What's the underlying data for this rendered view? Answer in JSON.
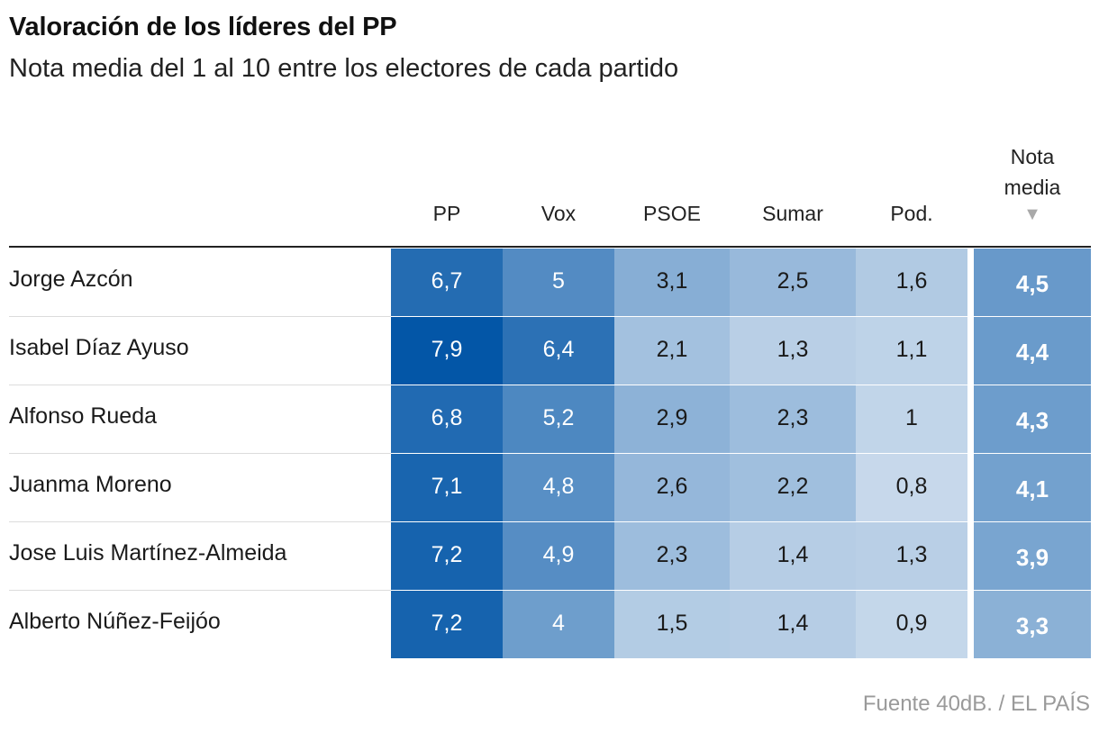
{
  "title": "Valoración de los líderes del PP",
  "subtitle": "Nota media del 1 al 10 entre los electores de cada partido",
  "source": "Fuente 40dB. / EL PAÍS",
  "colors": {
    "scale_low": "#cfdeee",
    "scale_high": "#0054a6",
    "text_dark": "#1a1a1a",
    "text_light": "#ffffff",
    "sort_arrow": "#a9a9a9"
  },
  "chart_data": {
    "type": "heatmap",
    "title": "Valoración de los líderes del PP",
    "subtitle": "Nota media del 1 al 10 entre los electores de cada partido",
    "columns": [
      "PP",
      "Vox",
      "PSOE",
      "Sumar",
      "Pod."
    ],
    "avg_header": [
      "Nota",
      "media"
    ],
    "sort_indicator": "▼",
    "rows": [
      {
        "name": "Jorge Azcón",
        "values": [
          "6,7",
          "5",
          "3,1",
          "2,5",
          "1,6"
        ],
        "avg": "4,5"
      },
      {
        "name": "Isabel Díaz Ayuso",
        "values": [
          "7,9",
          "6,4",
          "2,1",
          "1,3",
          "1,1"
        ],
        "avg": "4,4"
      },
      {
        "name": "Alfonso Rueda",
        "values": [
          "6,8",
          "5,2",
          "2,9",
          "2,3",
          "1"
        ],
        "avg": "4,3"
      },
      {
        "name": "Juanma Moreno",
        "values": [
          "7,1",
          "4,8",
          "2,6",
          "2,2",
          "0,8"
        ],
        "avg": "4,1"
      },
      {
        "name": "Jose Luis Martínez-Almeida",
        "values": [
          "7,2",
          "4,9",
          "2,3",
          "1,4",
          "1,3"
        ],
        "avg": "3,9"
      },
      {
        "name": "Alberto Núñez-Feijóo",
        "values": [
          "7,2",
          "4",
          "1,5",
          "1,4",
          "0,9"
        ],
        "avg": "3,3"
      }
    ]
  }
}
